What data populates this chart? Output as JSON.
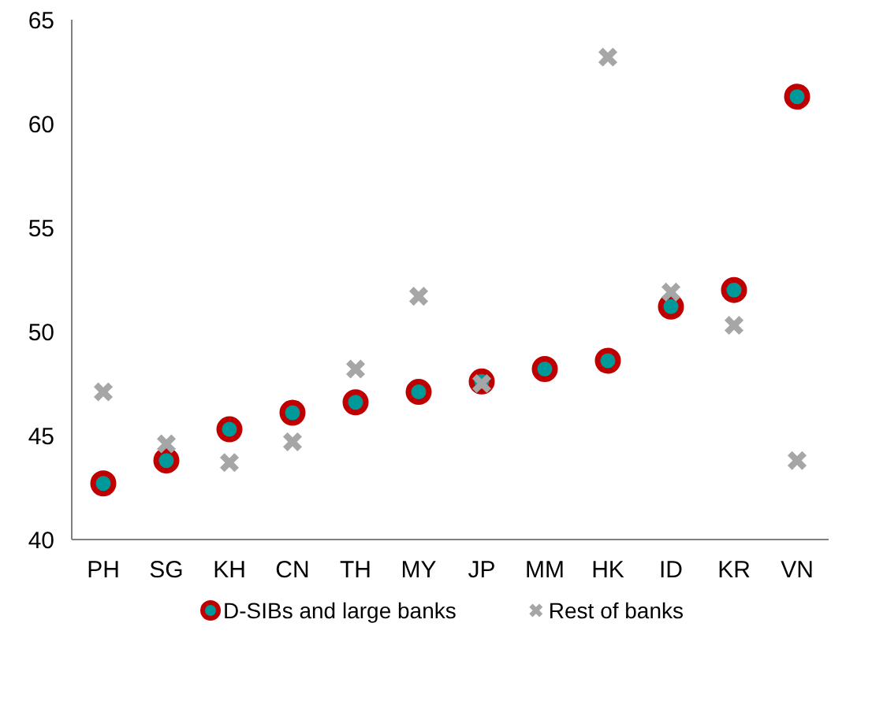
{
  "chart_data": {
    "type": "scatter",
    "categories": [
      "PH",
      "SG",
      "KH",
      "CN",
      "TH",
      "MY",
      "JP",
      "MM",
      "HK",
      "ID",
      "KR",
      "VN"
    ],
    "series": [
      {
        "name": "D-SIBs and large banks",
        "color": "#c00000",
        "marker": "circle",
        "values": [
          42.7,
          43.8,
          45.3,
          46.1,
          46.6,
          47.1,
          47.6,
          48.2,
          48.6,
          51.2,
          52.0,
          61.3
        ]
      },
      {
        "name": "Rest of banks",
        "color": "#a6a6a6",
        "marker": "cross",
        "values": [
          47.1,
          44.6,
          43.7,
          44.7,
          48.2,
          51.7,
          47.5,
          null,
          63.2,
          51.9,
          50.3,
          43.8
        ]
      }
    ],
    "ylim": [
      40,
      65
    ],
    "yticks": [
      40,
      45,
      50,
      55,
      60,
      65
    ],
    "grid": false,
    "legend": "bottom"
  }
}
